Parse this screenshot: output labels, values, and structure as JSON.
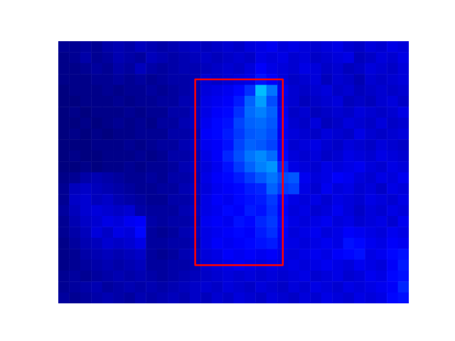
{
  "chart_data": {
    "type": "heatmap",
    "xlim": [
      -0.5,
      31.5
    ],
    "ylim": [
      23.5,
      -0.5
    ],
    "zlim": [
      0,
      1
    ],
    "tick_labels": false,
    "box": {
      "x": [
        12,
        20
      ],
      "y": [
        3,
        20
      ],
      "color": "red"
    },
    "cells": [
      [
        0.02,
        0.02,
        0.03,
        0.02,
        0.04,
        0.05,
        0.04,
        0.06,
        0.05,
        0.04,
        0.05,
        0.06,
        0.07,
        0.06,
        0.07,
        0.08,
        0.07,
        0.09,
        0.1,
        0.11,
        0.09,
        0.1,
        0.09,
        0.08,
        0.09,
        0.1,
        0.08,
        0.07,
        0.09,
        0.08,
        0.1,
        0.09
      ],
      [
        0.01,
        0.02,
        0.04,
        0.02,
        0.03,
        0.05,
        0.04,
        0.03,
        0.06,
        0.05,
        0.04,
        0.05,
        0.06,
        0.07,
        0.06,
        0.07,
        0.08,
        0.07,
        0.1,
        0.09,
        0.1,
        0.08,
        0.09,
        0.07,
        0.08,
        0.09,
        0.1,
        0.06,
        0.07,
        0.09,
        0.08,
        0.1
      ],
      [
        0.01,
        0.01,
        0.02,
        0.03,
        0.02,
        0.04,
        0.03,
        0.06,
        0.04,
        0.03,
        0.04,
        0.05,
        0.05,
        0.06,
        0.07,
        0.08,
        0.07,
        0.09,
        0.12,
        0.1,
        0.09,
        0.08,
        0.1,
        0.09,
        0.07,
        0.08,
        0.06,
        0.07,
        0.09,
        0.08,
        0.07,
        0.09
      ],
      [
        0.01,
        0.01,
        0.01,
        0.02,
        0.02,
        0.03,
        0.02,
        0.03,
        0.02,
        0.03,
        0.04,
        0.04,
        0.05,
        0.08,
        0.07,
        0.08,
        0.09,
        0.1,
        0.14,
        0.12,
        0.09,
        0.07,
        0.08,
        0.09,
        0.06,
        0.08,
        0.07,
        0.05,
        0.08,
        0.07,
        0.08,
        0.09
      ],
      [
        0.0,
        0.01,
        0.01,
        0.01,
        0.02,
        0.01,
        0.02,
        0.02,
        0.03,
        0.02,
        0.03,
        0.04,
        0.05,
        0.09,
        0.1,
        0.11,
        0.13,
        0.17,
        0.31,
        0.24,
        0.11,
        0.08,
        0.07,
        0.08,
        0.09,
        0.07,
        0.08,
        0.06,
        0.07,
        0.08,
        0.07,
        0.08
      ],
      [
        0.0,
        0.0,
        0.01,
        0.01,
        0.01,
        0.02,
        0.01,
        0.02,
        0.02,
        0.03,
        0.03,
        0.05,
        0.05,
        0.1,
        0.11,
        0.12,
        0.15,
        0.22,
        0.28,
        0.2,
        0.1,
        0.08,
        0.06,
        0.07,
        0.08,
        0.09,
        0.06,
        0.07,
        0.06,
        0.08,
        0.09,
        0.07
      ],
      [
        0.0,
        0.01,
        0.0,
        0.01,
        0.01,
        0.01,
        0.02,
        0.01,
        0.02,
        0.02,
        0.04,
        0.04,
        0.06,
        0.1,
        0.12,
        0.13,
        0.17,
        0.23,
        0.25,
        0.22,
        0.11,
        0.07,
        0.08,
        0.06,
        0.07,
        0.08,
        0.07,
        0.09,
        0.08,
        0.07,
        0.08,
        0.1
      ],
      [
        0.0,
        0.0,
        0.01,
        0.0,
        0.01,
        0.02,
        0.01,
        0.02,
        0.01,
        0.03,
        0.03,
        0.05,
        0.06,
        0.11,
        0.13,
        0.14,
        0.19,
        0.22,
        0.23,
        0.21,
        0.12,
        0.08,
        0.07,
        0.09,
        0.06,
        0.07,
        0.09,
        0.08,
        0.07,
        0.09,
        0.07,
        0.08
      ],
      [
        0.0,
        0.01,
        0.0,
        0.01,
        0.0,
        0.01,
        0.01,
        0.02,
        0.02,
        0.02,
        0.04,
        0.04,
        0.05,
        0.12,
        0.13,
        0.15,
        0.18,
        0.21,
        0.22,
        0.2,
        0.11,
        0.09,
        0.08,
        0.07,
        0.09,
        0.08,
        0.07,
        0.1,
        0.08,
        0.07,
        0.08,
        0.09
      ],
      [
        0.0,
        0.0,
        0.0,
        0.01,
        0.01,
        0.01,
        0.02,
        0.01,
        0.02,
        0.03,
        0.03,
        0.05,
        0.06,
        0.11,
        0.12,
        0.14,
        0.19,
        0.22,
        0.21,
        0.19,
        0.12,
        0.08,
        0.09,
        0.1,
        0.08,
        0.07,
        0.09,
        0.08,
        0.07,
        0.09,
        0.08,
        0.07
      ],
      [
        0.0,
        0.01,
        0.0,
        0.0,
        0.01,
        0.01,
        0.01,
        0.02,
        0.01,
        0.02,
        0.04,
        0.04,
        0.05,
        0.1,
        0.12,
        0.16,
        0.2,
        0.24,
        0.26,
        0.23,
        0.13,
        0.09,
        0.08,
        0.09,
        0.07,
        0.08,
        0.1,
        0.09,
        0.08,
        0.1,
        0.09,
        0.08
      ],
      [
        0.0,
        0.0,
        0.01,
        0.0,
        0.01,
        0.01,
        0.02,
        0.01,
        0.02,
        0.02,
        0.03,
        0.05,
        0.06,
        0.09,
        0.11,
        0.14,
        0.18,
        0.22,
        0.25,
        0.27,
        0.16,
        0.1,
        0.09,
        0.08,
        0.1,
        0.09,
        0.1,
        0.11,
        0.09,
        0.08,
        0.1,
        0.09
      ],
      [
        0.01,
        0.02,
        0.04,
        0.05,
        0.04,
        0.03,
        0.02,
        0.02,
        0.03,
        0.02,
        0.04,
        0.04,
        0.05,
        0.1,
        0.12,
        0.13,
        0.15,
        0.18,
        0.21,
        0.24,
        0.2,
        0.21,
        0.11,
        0.09,
        0.1,
        0.12,
        0.11,
        0.09,
        0.08,
        0.1,
        0.09,
        0.11
      ],
      [
        0.02,
        0.06,
        0.07,
        0.06,
        0.05,
        0.04,
        0.03,
        0.02,
        0.02,
        0.03,
        0.03,
        0.05,
        0.06,
        0.09,
        0.11,
        0.12,
        0.13,
        0.15,
        0.16,
        0.22,
        0.18,
        0.19,
        0.1,
        0.08,
        0.11,
        0.09,
        0.1,
        0.08,
        0.09,
        0.07,
        0.1,
        0.09
      ],
      [
        0.02,
        0.07,
        0.08,
        0.06,
        0.07,
        0.05,
        0.04,
        0.03,
        0.02,
        0.02,
        0.04,
        0.04,
        0.05,
        0.1,
        0.12,
        0.11,
        0.13,
        0.14,
        0.15,
        0.18,
        0.13,
        0.1,
        0.09,
        0.1,
        0.08,
        0.1,
        0.09,
        0.08,
        0.1,
        0.09,
        0.08,
        0.1
      ],
      [
        0.03,
        0.06,
        0.08,
        0.09,
        0.08,
        0.07,
        0.08,
        0.04,
        0.03,
        0.03,
        0.03,
        0.05,
        0.06,
        0.1,
        0.11,
        0.13,
        0.12,
        0.15,
        0.14,
        0.17,
        0.12,
        0.09,
        0.1,
        0.08,
        0.09,
        0.11,
        0.09,
        0.07,
        0.09,
        0.08,
        0.1,
        0.09
      ],
      [
        0.02,
        0.05,
        0.07,
        0.08,
        0.1,
        0.09,
        0.11,
        0.12,
        0.04,
        0.03,
        0.04,
        0.04,
        0.05,
        0.11,
        0.12,
        0.11,
        0.14,
        0.13,
        0.16,
        0.18,
        0.13,
        0.1,
        0.09,
        0.1,
        0.11,
        0.09,
        0.1,
        0.08,
        0.09,
        0.1,
        0.08,
        0.11
      ],
      [
        0.02,
        0.04,
        0.06,
        0.09,
        0.07,
        0.1,
        0.09,
        0.13,
        0.03,
        0.02,
        0.03,
        0.05,
        0.06,
        0.1,
        0.11,
        0.12,
        0.13,
        0.12,
        0.15,
        0.17,
        0.12,
        0.09,
        0.1,
        0.11,
        0.09,
        0.1,
        0.12,
        0.11,
        0.1,
        0.09,
        0.11,
        0.1
      ],
      [
        0.01,
        0.03,
        0.05,
        0.06,
        0.08,
        0.07,
        0.08,
        0.1,
        0.03,
        0.03,
        0.04,
        0.04,
        0.05,
        0.1,
        0.12,
        0.11,
        0.12,
        0.13,
        0.14,
        0.15,
        0.11,
        0.1,
        0.09,
        0.1,
        0.11,
        0.1,
        0.14,
        0.13,
        0.11,
        0.1,
        0.12,
        0.11
      ],
      [
        0.01,
        0.02,
        0.04,
        0.05,
        0.06,
        0.05,
        0.06,
        0.07,
        0.03,
        0.02,
        0.03,
        0.05,
        0.06,
        0.09,
        0.1,
        0.12,
        0.11,
        0.12,
        0.11,
        0.12,
        0.1,
        0.09,
        0.1,
        0.11,
        0.1,
        0.12,
        0.13,
        0.14,
        0.1,
        0.11,
        0.13,
        0.14
      ],
      [
        0.01,
        0.02,
        0.03,
        0.04,
        0.05,
        0.04,
        0.05,
        0.06,
        0.03,
        0.03,
        0.04,
        0.04,
        0.05,
        0.08,
        0.09,
        0.1,
        0.11,
        0.1,
        0.09,
        0.1,
        0.09,
        0.1,
        0.09,
        0.1,
        0.11,
        0.1,
        0.09,
        0.11,
        0.1,
        0.09,
        0.12,
        0.15
      ],
      [
        0.02,
        0.03,
        0.02,
        0.03,
        0.04,
        0.05,
        0.04,
        0.05,
        0.04,
        0.03,
        0.04,
        0.05,
        0.06,
        0.07,
        0.08,
        0.09,
        0.08,
        0.09,
        0.08,
        0.09,
        0.08,
        0.09,
        0.1,
        0.08,
        0.09,
        0.1,
        0.08,
        0.09,
        0.11,
        0.1,
        0.13,
        0.14
      ],
      [
        0.02,
        0.03,
        0.04,
        0.05,
        0.03,
        0.04,
        0.05,
        0.04,
        0.05,
        0.04,
        0.05,
        0.06,
        0.07,
        0.08,
        0.07,
        0.09,
        0.08,
        0.07,
        0.09,
        0.08,
        0.07,
        0.09,
        0.08,
        0.1,
        0.09,
        0.08,
        0.1,
        0.09,
        0.1,
        0.11,
        0.12,
        0.16
      ],
      [
        0.03,
        0.02,
        0.03,
        0.04,
        0.05,
        0.04,
        0.03,
        0.05,
        0.04,
        0.05,
        0.06,
        0.05,
        0.07,
        0.06,
        0.08,
        0.07,
        0.09,
        0.08,
        0.07,
        0.09,
        0.08,
        0.07,
        0.09,
        0.08,
        0.1,
        0.09,
        0.08,
        0.1,
        0.09,
        0.1,
        0.13,
        0.14
      ]
    ]
  }
}
